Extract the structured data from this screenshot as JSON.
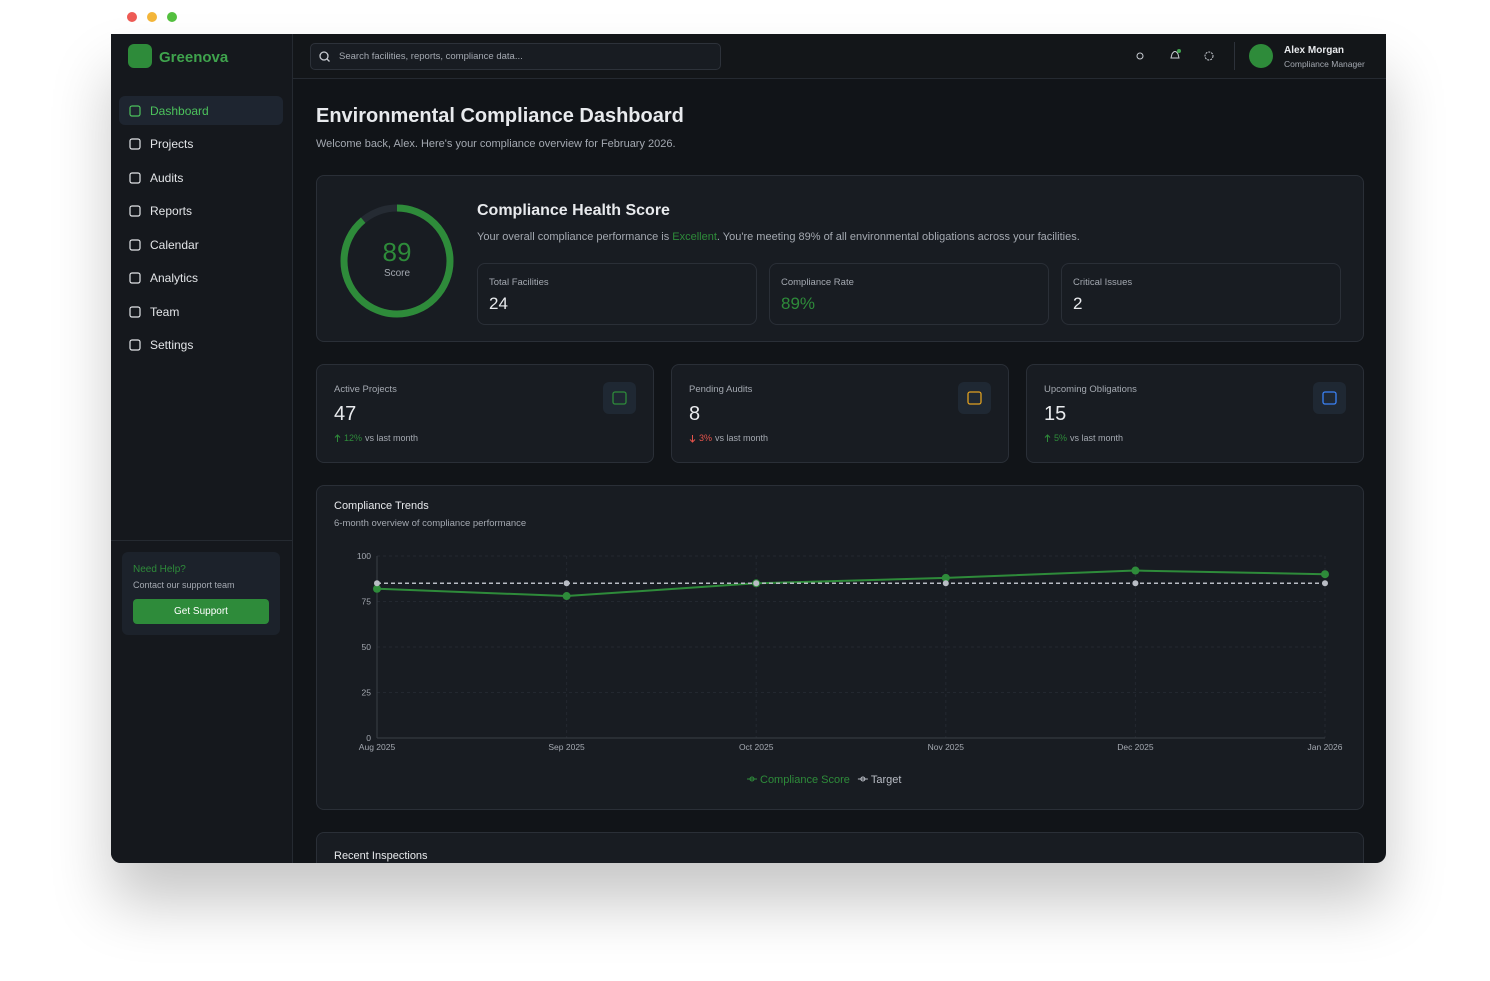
{
  "window": {
    "brand": "Greenova",
    "search_placeholder": "Search facilities, reports, compliance data...",
    "user": {
      "name": "Alex Morgan",
      "role": "Compliance Manager"
    }
  },
  "nav": [
    "Dashboard",
    "Projects",
    "Audits",
    "Reports",
    "Calendar",
    "Analytics",
    "Team",
    "Settings"
  ],
  "help": {
    "title": "Need Help?",
    "text": "Contact our support team",
    "button": "Get Support"
  },
  "header": {
    "title": "Environmental Compliance Dashboard",
    "subtitle": "Welcome back, Alex. Here's your compliance overview for February 2026."
  },
  "health": {
    "title": "Compliance Health Score",
    "score": 89,
    "score_label": "Score",
    "desc_before": "Your overall compliance performance is ",
    "desc_highlight": "Excellent",
    "desc_after": ". You're meeting 89% of all environmental obligations across your facilities.",
    "metrics": [
      {
        "label": "Total Facilities",
        "value": "24"
      },
      {
        "label": "Compliance Rate",
        "value": "89%"
      },
      {
        "label": "Critical Issues",
        "value": "2"
      }
    ]
  },
  "stats": [
    {
      "label": "Active Projects",
      "value": "47",
      "change": "12%",
      "direction": "up",
      "note": "vs last month"
    },
    {
      "label": "Pending Audits",
      "value": "8",
      "change": "3%",
      "direction": "down",
      "note": "vs last month"
    },
    {
      "label": "Upcoming Obligations",
      "value": "15",
      "change": "5%",
      "direction": "up",
      "note": "vs last month"
    }
  ],
  "chart_data": {
    "type": "line",
    "title": "Compliance Trends",
    "subtitle": "6-month overview of compliance performance",
    "categories": [
      "Aug 2025",
      "Sep 2025",
      "Oct 2025",
      "Nov 2025",
      "Dec 2025",
      "Jan 2026"
    ],
    "series": [
      {
        "name": "Compliance Score",
        "color": "#2e8b3a",
        "values": [
          82,
          78,
          85,
          88,
          92,
          90
        ]
      },
      {
        "name": "Target",
        "color": "#b8bcc4",
        "dashed": true,
        "values": [
          85,
          85,
          85,
          85,
          85,
          85
        ]
      }
    ],
    "ylim": [
      0,
      100
    ],
    "yticks": [
      0,
      25,
      50,
      75,
      100
    ],
    "grid": true,
    "legend": "bottom"
  },
  "recent": {
    "title": "Recent Inspections"
  }
}
